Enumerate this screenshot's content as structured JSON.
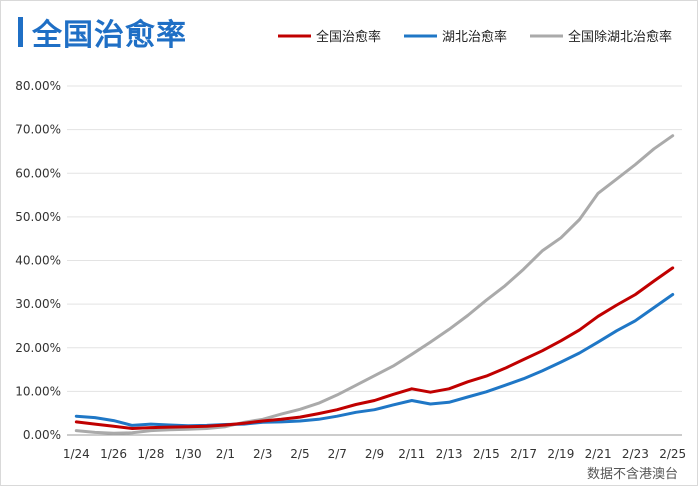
{
  "title": "全国治愈率",
  "source": "数据不含港澳台",
  "chart_data": {
    "type": "line",
    "title": "全国治愈率",
    "xlabel": "",
    "ylabel": "",
    "ylim": [
      0,
      80
    ],
    "yticks": [
      "0.00%",
      "10.00%",
      "20.00%",
      "30.00%",
      "40.00%",
      "50.00%",
      "60.00%",
      "70.00%",
      "80.00%"
    ],
    "x": [
      "1/24",
      "1/25",
      "1/26",
      "1/27",
      "1/28",
      "1/29",
      "1/30",
      "1/31",
      "2/1",
      "2/2",
      "2/3",
      "2/4",
      "2/5",
      "2/6",
      "2/7",
      "2/8",
      "2/9",
      "2/10",
      "2/11",
      "2/12",
      "2/13",
      "2/14",
      "2/15",
      "2/16",
      "2/17",
      "2/18",
      "2/19",
      "2/20",
      "2/21",
      "2/22",
      "2/23",
      "2/24",
      "2/25"
    ],
    "xtick_labels": [
      "1/24",
      "1/26",
      "1/28",
      "1/30",
      "2/1",
      "2/3",
      "2/5",
      "2/7",
      "2/9",
      "2/11",
      "2/13",
      "2/15",
      "2/17",
      "2/19",
      "2/21",
      "2/23",
      "2/25"
    ],
    "grid": "horizontal",
    "legend": "top-right",
    "series": [
      {
        "name": "全国治愈率",
        "color": "#c00000",
        "values": [
          3.0,
          2.5,
          2.0,
          1.5,
          1.7,
          1.8,
          1.9,
          2.0,
          2.3,
          2.7,
          3.2,
          3.6,
          4.1,
          4.9,
          5.8,
          7.0,
          7.9,
          9.3,
          10.6,
          9.8,
          10.6,
          12.2,
          13.5,
          15.3,
          17.3,
          19.3,
          21.6,
          24.1,
          27.2,
          29.8,
          32.2,
          35.3,
          38.3
        ]
      },
      {
        "name": "湖北治愈率",
        "color": "#1f77c6",
        "values": [
          4.3,
          4.0,
          3.3,
          2.2,
          2.5,
          2.3,
          2.1,
          2.2,
          2.4,
          2.5,
          2.9,
          3.0,
          3.2,
          3.6,
          4.3,
          5.2,
          5.8,
          6.9,
          7.9,
          7.1,
          7.5,
          8.7,
          9.9,
          11.4,
          12.9,
          14.7,
          16.7,
          18.8,
          21.3,
          23.9,
          26.2,
          29.2,
          32.2
        ]
      },
      {
        "name": "全国除湖北治愈率",
        "color": "#aaaaaa",
        "values": [
          1.0,
          0.6,
          0.4,
          0.5,
          1.0,
          1.2,
          1.3,
          1.5,
          1.9,
          2.9,
          3.6,
          4.8,
          5.9,
          7.3,
          9.2,
          11.4,
          13.6,
          15.8,
          18.5,
          21.3,
          24.2,
          27.4,
          30.9,
          34.2,
          38.0,
          42.2,
          45.2,
          49.4,
          55.4,
          58.7,
          62.0,
          65.6,
          68.6
        ]
      }
    ]
  }
}
